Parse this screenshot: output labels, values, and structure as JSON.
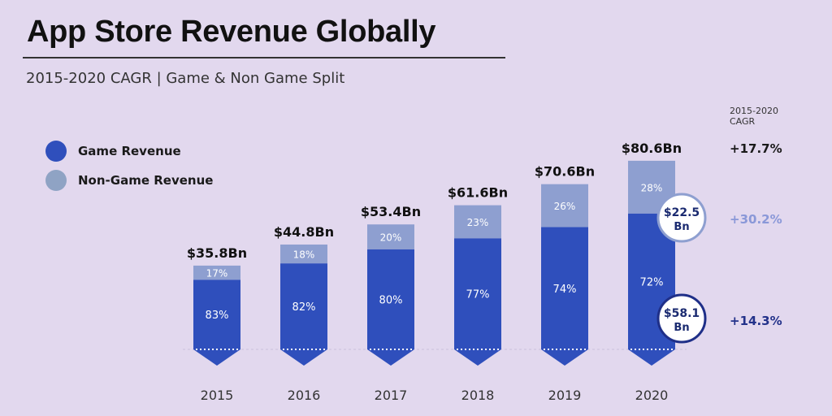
{
  "title": "App Store Revenue Globally",
  "subtitle": "2015-2020 CAGR | Game & Non Game Split",
  "legend": [
    {
      "label": "Game Revenue",
      "color": "#2f4fbc"
    },
    {
      "label": "Non-Game Revenue",
      "color": "#8e9fd0"
    }
  ],
  "cagr": {
    "heading_line1": "2015-2020",
    "heading_line2": "CAGR",
    "total": "+17.7%",
    "non_game": "+30.2%",
    "game": "+14.3%",
    "total_color": "#1a1a1a",
    "non_game_color": "#8a98d8",
    "game_color": "#23328a"
  },
  "callouts": {
    "non_game_value": "$22.5",
    "non_game_unit": "Bn",
    "game_value": "$58.1",
    "game_unit": "Bn"
  },
  "chart_data": {
    "type": "bar",
    "stacked": true,
    "title": "App Store Revenue Globally",
    "categories": [
      "2015",
      "2016",
      "2017",
      "2018",
      "2019",
      "2020"
    ],
    "totals": [
      35.8,
      44.8,
      53.4,
      61.6,
      70.6,
      80.6
    ],
    "total_labels": [
      "$35.8Bn",
      "$44.8Bn",
      "$53.4Bn",
      "$61.6Bn",
      "$70.6Bn",
      "$80.6Bn"
    ],
    "series": [
      {
        "name": "Game Revenue",
        "percent": [
          83,
          82,
          80,
          77,
          74,
          72
        ],
        "color": "#2f4fbc"
      },
      {
        "name": "Non-Game Revenue",
        "percent": [
          17,
          18,
          20,
          23,
          26,
          28
        ],
        "color": "#8e9fd0"
      }
    ],
    "unit": "Bn USD",
    "ylim": [
      0,
      80.6
    ]
  }
}
